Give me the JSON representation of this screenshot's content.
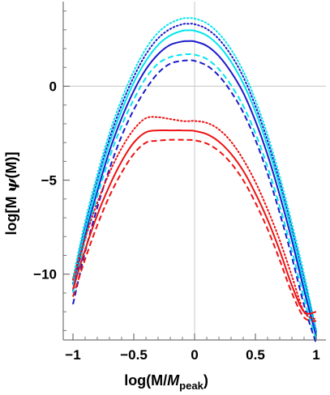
{
  "chart_data": {
    "type": "line",
    "xlabel_main": "log(M/",
    "xlabel_italic": "M",
    "xlabel_sub": "peak",
    "xlabel_close": ")",
    "ylabel_main": "log[M ",
    "ylabel_psi": "ψ",
    "ylabel_close": "(M)]",
    "xlim": [
      -1.08,
      1.08
    ],
    "ylim": [
      -13.5,
      4.5
    ],
    "xticks": [
      -1,
      -0.5,
      0,
      0.5,
      1
    ],
    "xtick_labels": [
      "−1",
      "−0.5",
      "0",
      "0.5",
      "1"
    ],
    "yticks": [
      -10,
      -5,
      0
    ],
    "ytick_labels": [
      "−10",
      "−5",
      "0"
    ],
    "zero_lines": true,
    "x": [
      -1.0,
      -0.9,
      -0.8,
      -0.7,
      -0.6,
      -0.5,
      -0.4,
      -0.3,
      -0.2,
      -0.1,
      -0.05,
      0.0,
      0.1,
      0.2,
      0.3,
      0.4,
      0.5,
      0.6,
      0.7,
      0.8,
      0.9,
      1.0
    ],
    "series": [
      {
        "color": "#00e5ee",
        "dash": "dotted",
        "values": [
          -10.2,
          -7.2,
          -4.7,
          -2.5,
          -0.7,
          0.8,
          2.0,
          2.85,
          3.35,
          3.6,
          3.62,
          3.6,
          3.35,
          2.8,
          1.95,
          0.8,
          -0.75,
          -2.6,
          -4.8,
          -7.3,
          -10.0,
          -13.0
        ]
      },
      {
        "color": "#1a1acc",
        "dash": "dotted",
        "values": [
          -10.5,
          -7.5,
          -5.0,
          -2.8,
          -1.0,
          0.5,
          1.7,
          2.55,
          3.05,
          3.3,
          3.32,
          3.3,
          3.05,
          2.5,
          1.65,
          0.5,
          -1.05,
          -2.9,
          -5.1,
          -7.6,
          -10.3,
          -13.1
        ]
      },
      {
        "color": "#00e5ee",
        "dash": "solid",
        "values": [
          -10.6,
          -7.7,
          -5.2,
          -3.05,
          -1.3,
          0.2,
          1.35,
          2.2,
          2.7,
          2.95,
          2.97,
          2.95,
          2.7,
          2.15,
          1.3,
          0.15,
          -1.35,
          -3.2,
          -5.35,
          -7.8,
          -10.5,
          -13.2
        ]
      },
      {
        "color": "#1a1acc",
        "dash": "solid",
        "values": [
          -10.9,
          -8.0,
          -5.6,
          -3.45,
          -1.7,
          -0.25,
          0.9,
          1.7,
          2.2,
          2.38,
          2.4,
          2.38,
          2.15,
          1.6,
          0.75,
          -0.35,
          -1.85,
          -3.65,
          -5.8,
          -8.2,
          -10.85,
          -13.3
        ]
      },
      {
        "color": "#00e5ee",
        "dash": "dashed",
        "values": [
          -11.0,
          -8.2,
          -5.85,
          -3.8,
          -2.1,
          -0.7,
          0.45,
          1.2,
          1.55,
          1.68,
          1.7,
          1.68,
          1.45,
          0.9,
          0.05,
          -1.05,
          -2.5,
          -4.3,
          -6.4,
          -8.75,
          -11.3,
          -13.5
        ]
      },
      {
        "color": "#1a1acc",
        "dash": "dashed",
        "values": [
          -11.6,
          -8.8,
          -6.45,
          -4.4,
          -2.65,
          -1.25,
          -0.15,
          0.7,
          1.2,
          1.35,
          1.37,
          1.35,
          1.1,
          0.55,
          -0.3,
          -1.4,
          -2.85,
          -4.65,
          -6.75,
          -9.1,
          -11.65,
          -13.7
        ]
      },
      {
        "color": "#ee1111",
        "dash": "dotted",
        "values": [
          -10.3,
          -8.1,
          -6.2,
          -4.6,
          -3.3,
          -2.3,
          -1.7,
          -1.65,
          -1.75,
          -1.85,
          -1.86,
          -1.85,
          -1.95,
          -2.3,
          -2.95,
          -3.9,
          -5.1,
          -6.55,
          -8.2,
          -10.1,
          -12.0,
          -12.4
        ]
      },
      {
        "color": "#ee1111",
        "dash": "solid",
        "values": [
          -10.8,
          -8.7,
          -6.85,
          -5.3,
          -4.0,
          -3.0,
          -2.45,
          -2.35,
          -2.35,
          -2.35,
          -2.36,
          -2.38,
          -2.55,
          -2.95,
          -3.6,
          -4.5,
          -5.7,
          -7.1,
          -8.75,
          -10.6,
          -12.0,
          -12.0
        ]
      },
      {
        "color": "#ee1111",
        "dash": "dashed",
        "values": [
          -11.2,
          -9.2,
          -7.4,
          -5.85,
          -4.6,
          -3.6,
          -3.0,
          -2.9,
          -2.85,
          -2.85,
          -2.86,
          -2.88,
          -3.05,
          -3.45,
          -4.1,
          -5.0,
          -6.2,
          -7.6,
          -9.25,
          -11.0,
          -12.3,
          -12.5
        ]
      }
    ]
  }
}
